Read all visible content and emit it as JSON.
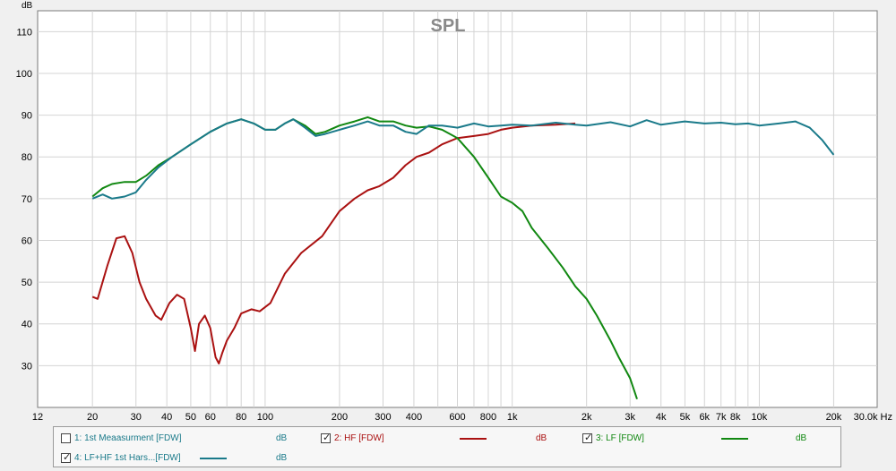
{
  "chart_data": {
    "type": "line",
    "title": "SPL",
    "ylabel": "dB",
    "xlabel": "Hz",
    "x_scale": "log",
    "xlim": [
      12,
      30000
    ],
    "ylim": [
      20,
      115
    ],
    "grid": true,
    "legend_position": "bottom",
    "y_ticks": [
      30,
      40,
      50,
      60,
      70,
      80,
      90,
      100,
      110
    ],
    "x_ticks": [
      {
        "value": 12,
        "label": "12"
      },
      {
        "value": 20,
        "label": "20"
      },
      {
        "value": 30,
        "label": "30"
      },
      {
        "value": 40,
        "label": "40"
      },
      {
        "value": 50,
        "label": "50"
      },
      {
        "value": 60,
        "label": "60"
      },
      {
        "value": 80,
        "label": "80"
      },
      {
        "value": 100,
        "label": "100"
      },
      {
        "value": 200,
        "label": "200"
      },
      {
        "value": 300,
        "label": "300"
      },
      {
        "value": 400,
        "label": "400"
      },
      {
        "value": 600,
        "label": "600"
      },
      {
        "value": 800,
        "label": "800"
      },
      {
        "value": 1000,
        "label": "1k"
      },
      {
        "value": 2000,
        "label": "2k"
      },
      {
        "value": 3000,
        "label": "3k"
      },
      {
        "value": 4000,
        "label": "4k"
      },
      {
        "value": 5000,
        "label": "5k"
      },
      {
        "value": 6000,
        "label": "6k"
      },
      {
        "value": 7000,
        "label": "7k"
      },
      {
        "value": 8000,
        "label": "8k"
      },
      {
        "value": 10000,
        "label": "10k"
      },
      {
        "value": 20000,
        "label": "20k"
      },
      {
        "value": 30000,
        "label": "30.0k Hz"
      }
    ],
    "series": [
      {
        "name": "2: HF [FDW]",
        "color": "#aa1111",
        "points": [
          [
            20,
            46.5
          ],
          [
            21,
            46
          ],
          [
            23,
            54
          ],
          [
            25,
            60.5
          ],
          [
            27,
            61
          ],
          [
            29,
            57
          ],
          [
            31,
            50
          ],
          [
            33,
            46
          ],
          [
            36,
            42
          ],
          [
            38,
            41
          ],
          [
            41,
            45
          ],
          [
            44,
            47
          ],
          [
            47,
            46
          ],
          [
            50,
            39
          ],
          [
            52,
            33.5
          ],
          [
            54,
            40
          ],
          [
            57,
            42
          ],
          [
            60,
            39
          ],
          [
            63,
            32
          ],
          [
            65,
            30.5
          ],
          [
            67,
            33
          ],
          [
            70,
            36
          ],
          [
            75,
            39
          ],
          [
            80,
            42.5
          ],
          [
            88,
            43.5
          ],
          [
            95,
            43
          ],
          [
            105,
            45
          ],
          [
            120,
            52
          ],
          [
            140,
            57
          ],
          [
            170,
            61
          ],
          [
            200,
            67
          ],
          [
            230,
            70
          ],
          [
            260,
            72
          ],
          [
            290,
            73
          ],
          [
            330,
            75
          ],
          [
            370,
            78
          ],
          [
            410,
            80
          ],
          [
            460,
            81
          ],
          [
            520,
            83
          ],
          [
            600,
            84.5
          ],
          [
            700,
            85
          ],
          [
            800,
            85.5
          ],
          [
            900,
            86.5
          ],
          [
            1000,
            87
          ],
          [
            1200,
            87.5
          ],
          [
            1500,
            87.7
          ],
          [
            1800,
            88
          ]
        ]
      },
      {
        "name": "3: LF [FDW]",
        "color": "#118811",
        "points": [
          [
            20,
            70.5
          ],
          [
            22,
            72.5
          ],
          [
            24,
            73.5
          ],
          [
            27,
            74
          ],
          [
            30,
            74
          ],
          [
            33,
            75.5
          ],
          [
            37,
            78
          ],
          [
            42,
            80
          ],
          [
            50,
            83
          ],
          [
            60,
            86
          ],
          [
            70,
            88
          ],
          [
            80,
            89
          ],
          [
            90,
            88
          ],
          [
            100,
            86.5
          ],
          [
            110,
            86.5
          ],
          [
            120,
            88
          ],
          [
            130,
            89
          ],
          [
            145,
            87.5
          ],
          [
            160,
            85.5
          ],
          [
            175,
            86
          ],
          [
            200,
            87.5
          ],
          [
            230,
            88.5
          ],
          [
            260,
            89.5
          ],
          [
            290,
            88.5
          ],
          [
            330,
            88.5
          ],
          [
            370,
            87.5
          ],
          [
            410,
            87
          ],
          [
            460,
            87.3
          ],
          [
            520,
            86.5
          ],
          [
            600,
            84.5
          ],
          [
            700,
            80
          ],
          [
            800,
            75
          ],
          [
            900,
            70.5
          ],
          [
            1000,
            69
          ],
          [
            1100,
            67
          ],
          [
            1200,
            63
          ],
          [
            1400,
            58
          ],
          [
            1600,
            53.5
          ],
          [
            1800,
            49
          ],
          [
            2000,
            46
          ],
          [
            2200,
            42
          ],
          [
            2500,
            36
          ],
          [
            2700,
            32
          ],
          [
            3000,
            27
          ],
          [
            3200,
            22
          ]
        ]
      },
      {
        "name": "4: LF+HF 1st Hars...[FDW]",
        "color": "#1a7a8a",
        "points": [
          [
            20,
            70
          ],
          [
            22,
            71
          ],
          [
            24,
            70
          ],
          [
            27,
            70.5
          ],
          [
            30,
            71.5
          ],
          [
            33,
            74.5
          ],
          [
            37,
            77.5
          ],
          [
            42,
            80
          ],
          [
            50,
            83
          ],
          [
            60,
            86
          ],
          [
            70,
            88
          ],
          [
            80,
            89
          ],
          [
            90,
            88
          ],
          [
            100,
            86.5
          ],
          [
            110,
            86.5
          ],
          [
            120,
            88
          ],
          [
            130,
            89
          ],
          [
            145,
            87
          ],
          [
            160,
            85
          ],
          [
            175,
            85.5
          ],
          [
            200,
            86.5
          ],
          [
            230,
            87.5
          ],
          [
            260,
            88.5
          ],
          [
            290,
            87.5
          ],
          [
            330,
            87.5
          ],
          [
            370,
            86
          ],
          [
            410,
            85.5
          ],
          [
            460,
            87.5
          ],
          [
            520,
            87.5
          ],
          [
            600,
            87
          ],
          [
            700,
            88
          ],
          [
            800,
            87.3
          ],
          [
            900,
            87.5
          ],
          [
            1000,
            87.7
          ],
          [
            1200,
            87.5
          ],
          [
            1500,
            88.2
          ],
          [
            1800,
            87.7
          ],
          [
            2000,
            87.5
          ],
          [
            2500,
            88.3
          ],
          [
            3000,
            87.3
          ],
          [
            3500,
            88.8
          ],
          [
            4000,
            87.7
          ],
          [
            5000,
            88.5
          ],
          [
            6000,
            88
          ],
          [
            7000,
            88.2
          ],
          [
            8000,
            87.8
          ],
          [
            9000,
            88
          ],
          [
            10000,
            87.5
          ],
          [
            12000,
            88
          ],
          [
            14000,
            88.5
          ],
          [
            16000,
            87
          ],
          [
            18000,
            84
          ],
          [
            20000,
            80.5
          ]
        ]
      }
    ]
  },
  "legend": [
    {
      "label": "1: 1st Meaasurment [FDW]",
      "checked": false,
      "color": "#1a7a8a",
      "unit": "dB",
      "show_swatch": false
    },
    {
      "label": "2: HF [FDW]",
      "checked": true,
      "color": "#aa1111",
      "unit": "dB",
      "show_swatch": true
    },
    {
      "label": "3: LF [FDW]",
      "checked": true,
      "color": "#118811",
      "unit": "dB",
      "show_swatch": true
    },
    {
      "label": "4: LF+HF 1st Hars...[FDW]",
      "checked": true,
      "color": "#1a7a8a",
      "unit": "dB",
      "show_swatch": true
    }
  ]
}
